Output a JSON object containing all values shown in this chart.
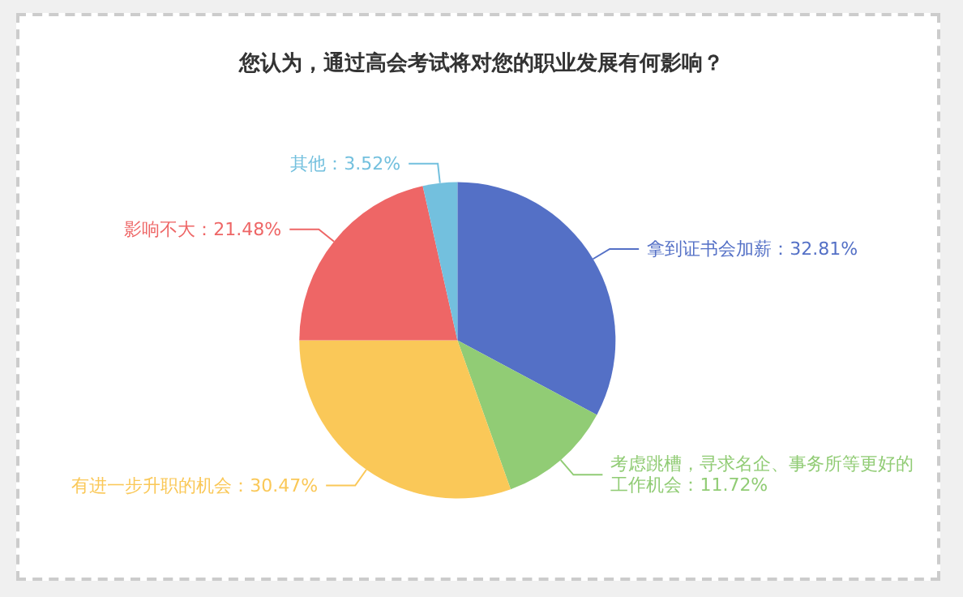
{
  "chart_data": {
    "type": "pie",
    "title": "您认为，通过高会考试将对您的职业发展有何影响？",
    "categories": [
      "拿到证书会加薪",
      "考虑跳槽，寻求名企、事务所等更好的工作机会",
      "有进一步升职的机会",
      "影响不大",
      "其他"
    ],
    "values": [
      32.81,
      11.72,
      30.47,
      21.48,
      3.52
    ],
    "colors": [
      "#5470c6",
      "#91cc75",
      "#fac858",
      "#ee6666",
      "#73c0de"
    ],
    "value_labels": [
      "：32.81%",
      "：11.72%",
      "：30.47%",
      "：21.48%",
      "：3.52%"
    ],
    "legend": false
  }
}
